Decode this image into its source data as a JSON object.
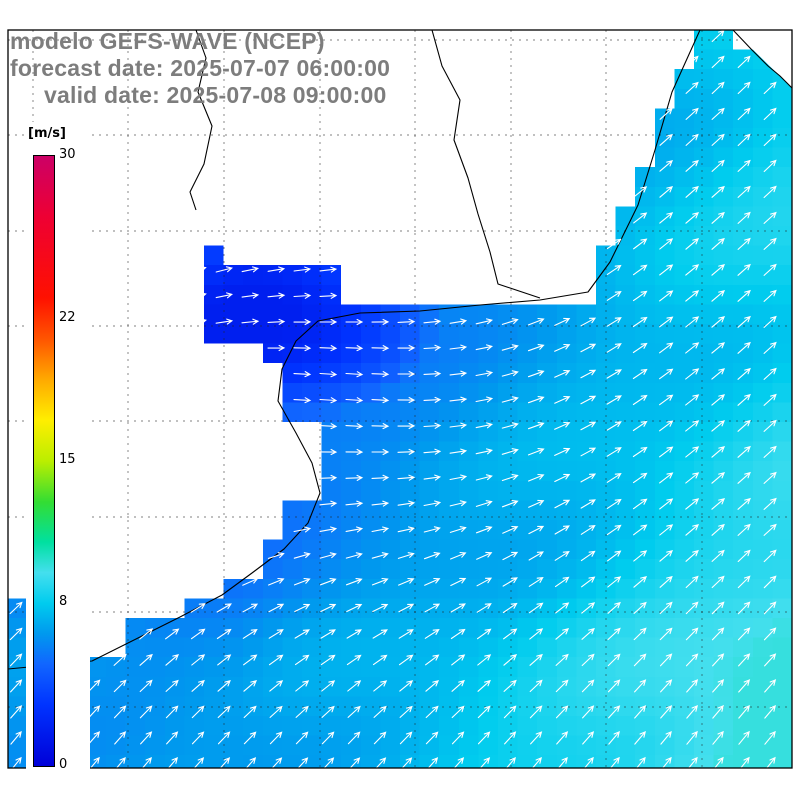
{
  "header": {
    "line1": "modelo GEFS-WAVE (NCEP)",
    "line2": "forecast date: 2025-07-07 06:00:00",
    "line3": "valid date: 2025-07-08 09:00:00",
    "text_color": "#7d7d7d"
  },
  "colorbar": {
    "unit_label": "[m/s]",
    "min": 0,
    "max": 30,
    "tick_values": [
      30,
      22,
      15,
      8,
      0
    ],
    "stops": [
      [
        0,
        "#0000d8"
      ],
      [
        3,
        "#0033ff"
      ],
      [
        5,
        "#1166ff"
      ],
      [
        6.5,
        "#0099ee"
      ],
      [
        8,
        "#00ccee"
      ],
      [
        9.5,
        "#44dfee"
      ],
      [
        11,
        "#00e0a0"
      ],
      [
        13,
        "#33dd33"
      ],
      [
        15,
        "#bbee00"
      ],
      [
        17,
        "#ffee00"
      ],
      [
        19,
        "#ffaa00"
      ],
      [
        21,
        "#ff5500"
      ],
      [
        23,
        "#ff1100"
      ],
      [
        27,
        "#ee0033"
      ],
      [
        30,
        "#cc0066"
      ]
    ]
  },
  "map": {
    "frame_color": "#000000",
    "land_color": "#ffffff",
    "arrow_color": "#ffffff",
    "coast_color": "#000000",
    "grid": {
      "x_lines": [
        33,
        128,
        224,
        320,
        415,
        511,
        606,
        702
      ],
      "y_lines": [
        40,
        135,
        231,
        326,
        421,
        517,
        612,
        707
      ],
      "dash": "2 5"
    },
    "field": {
      "quantity": "wind speed",
      "units": "m/s",
      "visible_value_range": [
        2,
        10
      ],
      "vector_symbol": "arrow"
    }
  }
}
